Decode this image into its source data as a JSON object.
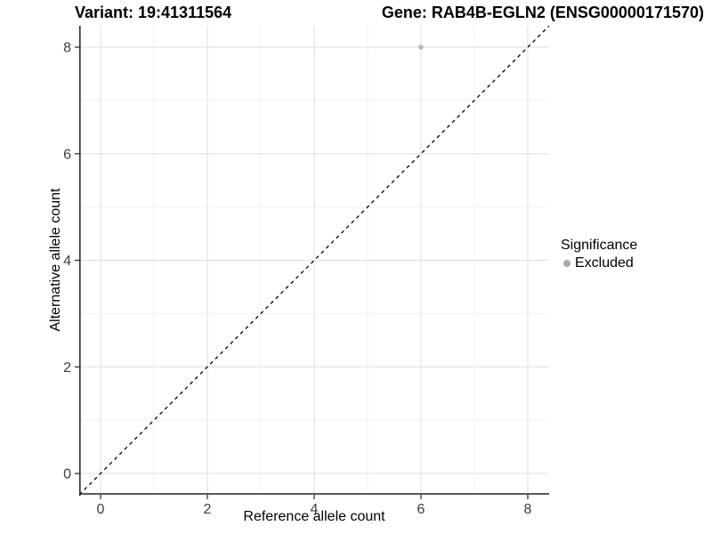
{
  "figure": {
    "title_left": "Variant: 19:41311564",
    "title_right": "Gene: RAB4B-EGLN2 (ENSG00000171570)"
  },
  "chart_data": {
    "type": "scatter",
    "title": "Variant: 19:41311564  /  Gene: RAB4B-EGLN2 (ENSG00000171570)",
    "xlabel": "Reference allele count",
    "ylabel": "Alternative allele count",
    "xlim": [
      -0.4,
      8.4
    ],
    "ylim": [
      -0.4,
      8.4
    ],
    "x_ticks": [
      0,
      2,
      4,
      6,
      8
    ],
    "y_ticks": [
      0,
      2,
      4,
      6,
      8
    ],
    "x_minor_ticks": [
      1,
      3,
      5,
      7
    ],
    "y_minor_ticks": [
      1,
      3,
      5,
      7
    ],
    "grid": "on",
    "series": [
      {
        "name": "Excluded",
        "points": [
          {
            "x": 6,
            "y": 8
          }
        ]
      }
    ],
    "reference_line": {
      "kind": "identity",
      "style": "dashed"
    },
    "legend": {
      "title": "Significance",
      "position": "right",
      "items": [
        {
          "label": "Excluded",
          "color": "#a9a9a9"
        }
      ]
    }
  },
  "colors": {
    "background": "#ffffff",
    "grid_major": "#e4e4e4",
    "grid_minor": "#f2f2f2",
    "axis_line": "#333333",
    "tick_mark": "#333333",
    "tick_text": "#3d3d3d",
    "point": "#b5b5b5",
    "reference_line": "#000000"
  }
}
